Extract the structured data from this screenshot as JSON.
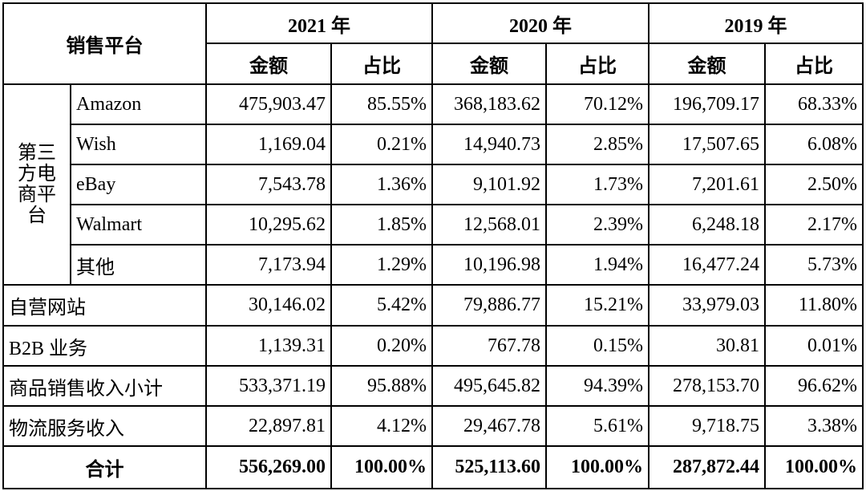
{
  "header": {
    "platform": "销售平台",
    "years": [
      "2021 年",
      "2020 年",
      "2019 年"
    ],
    "amount": "金额",
    "ratio": "占比"
  },
  "group_label_lines": [
    "第三",
    "方电",
    "商平",
    "台"
  ],
  "third_party_rows": [
    {
      "name": "Amazon",
      "cells": [
        "475,903.47",
        "85.55%",
        "368,183.62",
        "70.12%",
        "196,709.17",
        "68.33%"
      ]
    },
    {
      "name": "Wish",
      "cells": [
        "1,169.04",
        "0.21%",
        "14,940.73",
        "2.85%",
        "17,507.65",
        "6.08%"
      ]
    },
    {
      "name": "eBay",
      "cells": [
        "7,543.78",
        "1.36%",
        "9,101.92",
        "1.73%",
        "7,201.61",
        "2.50%"
      ]
    },
    {
      "name": "Walmart",
      "cells": [
        "10,295.62",
        "1.85%",
        "12,568.01",
        "2.39%",
        "6,248.18",
        "2.17%"
      ]
    },
    {
      "name": "其他",
      "cells": [
        "7,173.94",
        "1.29%",
        "10,196.98",
        "1.94%",
        "16,477.24",
        "5.73%"
      ]
    }
  ],
  "other_rows": [
    {
      "name": "自营网站",
      "cells": [
        "30,146.02",
        "5.42%",
        "79,886.77",
        "15.21%",
        "33,979.03",
        "11.80%"
      ]
    },
    {
      "name": "B2B 业务",
      "cells": [
        "1,139.31",
        "0.20%",
        "767.78",
        "0.15%",
        "30.81",
        "0.01%"
      ]
    },
    {
      "name": "商品销售收入小计",
      "cells": [
        "533,371.19",
        "95.88%",
        "495,645.82",
        "94.39%",
        "278,153.70",
        "96.62%"
      ]
    },
    {
      "name": "物流服务收入",
      "cells": [
        "22,897.81",
        "4.12%",
        "29,467.78",
        "5.61%",
        "9,718.75",
        "3.38%"
      ]
    }
  ],
  "total_row": {
    "name": "合计",
    "cells": [
      "556,269.00",
      "100.00%",
      "525,113.60",
      "100.00%",
      "287,872.44",
      "100.00%"
    ]
  }
}
